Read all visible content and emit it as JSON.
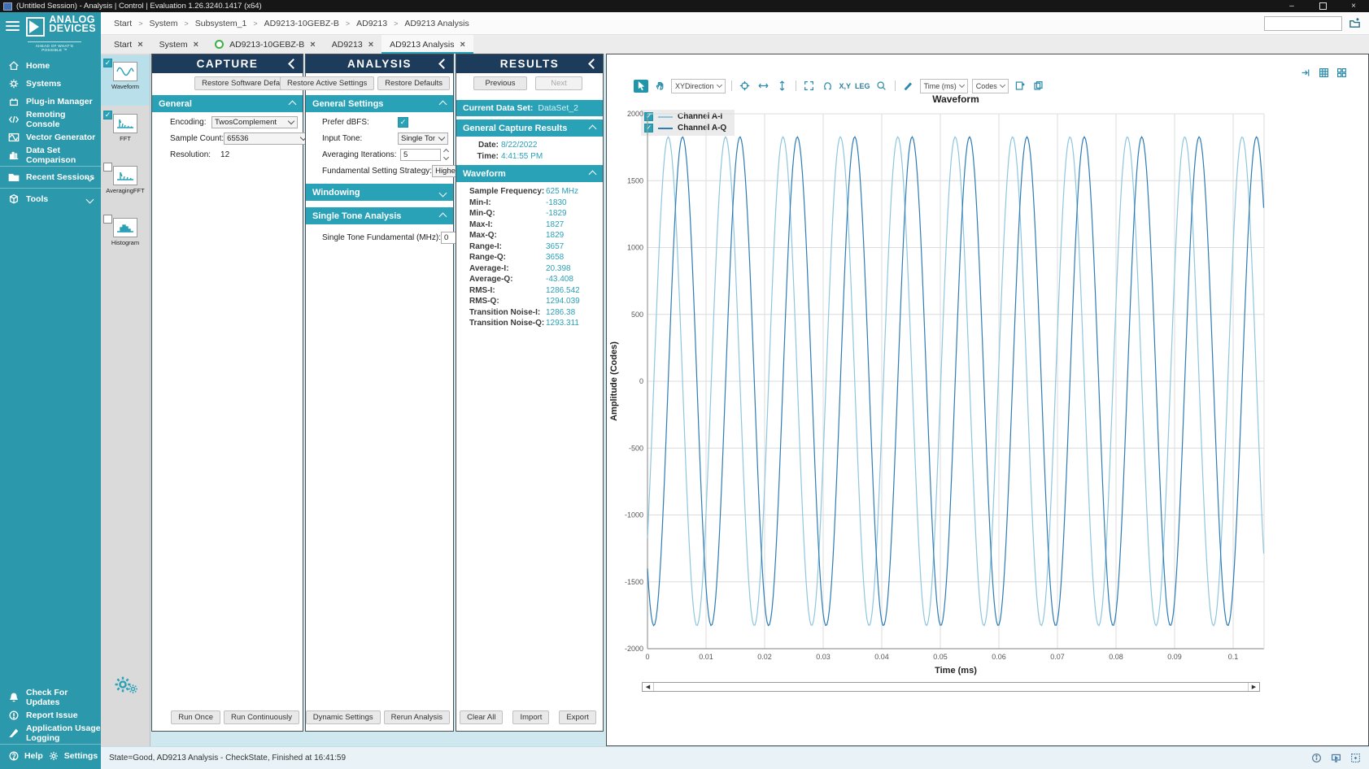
{
  "window": {
    "title": "(Untitled Session) - Analysis | Control | Evaluation 1.26.3240.1417  (x64)"
  },
  "sidebar": {
    "logo": {
      "brand_line1": "ANALOG",
      "brand_line2": "DEVICES",
      "tagline": "AHEAD OF WHAT'S POSSIBLE ™"
    },
    "items": [
      {
        "icon": "home-icon",
        "label": "Home"
      },
      {
        "icon": "systems-icon",
        "label": "Systems"
      },
      {
        "icon": "plugin-manager-icon",
        "label": "Plug-in Manager"
      },
      {
        "icon": "remoting-console-icon",
        "label": "Remoting Console"
      },
      {
        "icon": "vector-generator-icon",
        "label": "Vector Generator"
      },
      {
        "icon": "data-set-comparison-icon",
        "label": "Data Set Comparison"
      },
      {
        "icon": "recent-sessions-icon",
        "label": "Recent Sessions",
        "expandable": true
      },
      {
        "icon": "tools-icon",
        "label": "Tools",
        "expandable": true
      }
    ],
    "bottom_items": [
      {
        "icon": "bell-icon",
        "label": "Check For Updates"
      },
      {
        "icon": "report-issue-icon",
        "label": "Report Issue"
      },
      {
        "icon": "usage-logging-icon",
        "label": "Application Usage Logging"
      }
    ],
    "help_label": "Help",
    "settings_label": "Settings"
  },
  "breadcrumb": {
    "separator": ">",
    "items": [
      "Start",
      "System",
      "Subsystem_1",
      "AD9213-10GEBZ-B",
      "AD9213",
      "AD9213 Analysis"
    ],
    "filter_input_value": ""
  },
  "tabs": [
    {
      "label": "Start"
    },
    {
      "label": "System"
    },
    {
      "label": "AD9213-10GEBZ-B",
      "status_dot": true
    },
    {
      "label": "AD9213"
    },
    {
      "label": "AD9213 Analysis",
      "active": true
    }
  ],
  "tool_strip": [
    {
      "icon": "waveform-icon",
      "label": "Waveform",
      "checked": true,
      "selected": true
    },
    {
      "icon": "fft-icon",
      "label": "FFT",
      "checked": true,
      "selected": false
    },
    {
      "icon": "averaging-fft-icon",
      "label": "AveragingFFT",
      "checked": false,
      "selected": false
    },
    {
      "icon": "histogram-icon",
      "label": "Histogram",
      "checked": false,
      "selected": false
    }
  ],
  "capture": {
    "title": "CAPTURE",
    "restore_button": "Restore Software Defaults",
    "general_section": {
      "title": "General",
      "fields": [
        {
          "label": "Encoding:",
          "value": "TwosComplement",
          "control": "dropdown"
        },
        {
          "label": "Sample Count:",
          "value": "65536",
          "control": "dropdown"
        },
        {
          "label": "Resolution:",
          "value": "12",
          "control": "text"
        }
      ]
    },
    "footer_buttons": [
      "Run Once",
      "Run Continuously"
    ]
  },
  "analysis": {
    "title": "ANALYSIS",
    "header_buttons": [
      "Restore Active Settings",
      "Restore Defaults"
    ],
    "general_settings": {
      "title": "General Settings",
      "fields": [
        {
          "label": "Prefer dBFS:",
          "control": "checkbox",
          "checked": true
        },
        {
          "label": "Input Tone:",
          "value": "Single Tone",
          "control": "dropdown"
        },
        {
          "label": "Averaging Iterations:",
          "value": "5",
          "control": "spinner"
        },
        {
          "label": "Fundamental Setting Strategy:",
          "value": "Highest Bin",
          "control": "dropdown"
        }
      ]
    },
    "windowing_section": {
      "title": "Windowing",
      "collapsed": true
    },
    "single_tone_section": {
      "title": "Single Tone Analysis",
      "field_label": "Single Tone Fundamental (MHz):",
      "value": "0",
      "unit": "MHz"
    },
    "footer_buttons": [
      "Dynamic Settings",
      "Rerun Analysis"
    ]
  },
  "results": {
    "title": "RESULTS",
    "previous_button": "Previous",
    "next_button": "Next",
    "current_data_set_label": "Current Data Set:",
    "current_data_set_value": "DataSet_2",
    "general_capture_results": {
      "title": "General Capture Results",
      "rows": [
        {
          "label": "Date:",
          "value": "8/22/2022"
        },
        {
          "label": "Time:",
          "value": "4:41:55 PM"
        }
      ]
    },
    "waveform_results": {
      "title": "Waveform",
      "rows": [
        {
          "label": "Sample Frequency:",
          "value": "625 MHz"
        },
        {
          "label": "Min-I:",
          "value": "-1830"
        },
        {
          "label": "Min-Q:",
          "value": "-1829"
        },
        {
          "label": "Max-I:",
          "value": "1827"
        },
        {
          "label": "Max-Q:",
          "value": "1829"
        },
        {
          "label": "Range-I:",
          "value": "3657"
        },
        {
          "label": "Range-Q:",
          "value": "3658"
        },
        {
          "label": "Average-I:",
          "value": "20.398"
        },
        {
          "label": "Average-Q:",
          "value": "-43.408"
        },
        {
          "label": "RMS-I:",
          "value": "1286.542"
        },
        {
          "label": "RMS-Q:",
          "value": "1294.039"
        },
        {
          "label": "Transition Noise-I:",
          "value": "1286.38"
        },
        {
          "label": "Transition Noise-Q:",
          "value": "1293.311"
        }
      ]
    },
    "footer_buttons": [
      "Clear All",
      "Import",
      "Export"
    ]
  },
  "chart_toolbar": {
    "xydirection_label": "XYDirection",
    "xy_label": "X,Y",
    "leg_label": "LEG",
    "time_unit_label": "Time (ms)",
    "codes_label": "Codes",
    "icons": [
      "select-pointer-icon",
      "pan-hand-icon",
      "crosshair-icon",
      "horizontal-zoom-icon",
      "vertical-zoom-icon",
      "fit-zoom-icon",
      "undo-zoom-icon",
      "xy-readout-toggle",
      "legend-toggle",
      "zoom-magnifier-icon",
      "annotate-pencil-icon",
      "export-image-icon",
      "copy-data-icon"
    ]
  },
  "chart_data": {
    "type": "line",
    "title": "Waveform",
    "xlabel": "Time (ms)",
    "ylabel": "Amplitude (Codes)",
    "xlim": [
      0,
      0.1053
    ],
    "ylim": [
      -2000,
      2000
    ],
    "x_ticks": [
      0,
      0.01,
      0.02,
      0.03,
      0.04,
      0.05,
      0.06,
      0.07,
      0.08,
      0.09,
      0.1
    ],
    "x_tick_labels": [
      "0",
      "0.01",
      "0.02",
      "0.03",
      "0.04",
      "0.05",
      "0.06",
      "0.07",
      "0.08",
      "0.09",
      "0.1"
    ],
    "y_ticks": [
      2000,
      1500,
      1000,
      500,
      0,
      -500,
      -1000,
      -1500,
      -2000
    ],
    "grid": true,
    "legend_position": "top-left",
    "series": [
      {
        "name": "Channel A-I",
        "color": "#8fc6de",
        "waveform": "sine",
        "amplitude_codes": 1828,
        "period_ms": 0.0098,
        "phase_deg": -40,
        "checked": true
      },
      {
        "name": "Channel A-Q",
        "color": "#2d7cb5",
        "waveform": "sine",
        "amplitude_codes": 1828,
        "period_ms": 0.0098,
        "phase_deg": -130,
        "checked": true
      }
    ]
  },
  "status_bar": {
    "text": "State=Good, AD9213 Analysis - CheckState, Finished at 16:41:59",
    "icons": [
      "info-icon",
      "remote-display-icon",
      "fit-window-icon"
    ]
  },
  "colors": {
    "sidebar_teal": "#2b98ab",
    "section_teal": "#29a2b8",
    "header_navy": "#1d3c5b",
    "value_teal": "#2aa1b7",
    "selected_cell": "#b9e0ea",
    "channel_i": "#8fc6de",
    "channel_q": "#2d7cb5",
    "status_green": "#3fae49"
  }
}
